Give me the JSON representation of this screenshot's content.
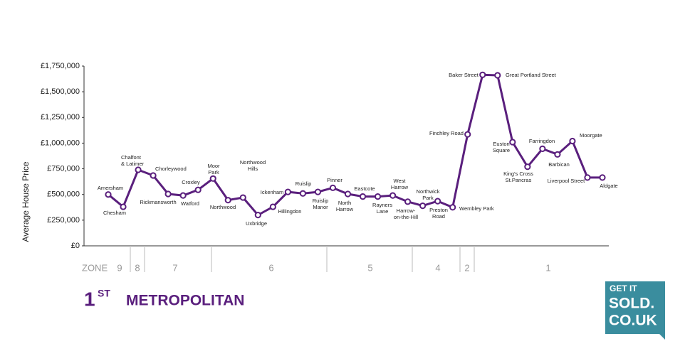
{
  "chart_data": {
    "type": "line",
    "y_label": "Average House Price",
    "ylim": [
      0,
      1750000
    ],
    "yticks": [
      {
        "value": 0,
        "label": "£0"
      },
      {
        "value": 250000,
        "label": "£250,000"
      },
      {
        "value": 500000,
        "label": "£500,000"
      },
      {
        "value": 750000,
        "label": "£750,000"
      },
      {
        "value": 1000000,
        "label": "£1,000,000"
      },
      {
        "value": 1250000,
        "label": "£1,250,000"
      },
      {
        "value": 1500000,
        "label": "£1,500,000"
      },
      {
        "value": 1750000,
        "label": "£1,750,000"
      }
    ],
    "color": "#5a1f7d",
    "categories": [
      "Amersham",
      "Chesham",
      "Chalfont & Latimer",
      "Chorleywood",
      "Rickmansworth",
      "Watford",
      "Croxley",
      "Moor Park",
      "Northwood",
      "Northwood Hills",
      "Uxbridge",
      "Hillingdon",
      "Ickenham",
      "Ruislip",
      "Ruislip Manor",
      "Pinner",
      "North Harrow",
      "Eastcote",
      "Rayners Lane",
      "West Harrow",
      "Harrow-on-the-Hill",
      "Northwick Park",
      "Preston Road",
      "Wembley Park",
      "Finchley Road",
      "Baker Street",
      "Great Portland Street",
      "Euston Square",
      "King's Cross St.Pancras",
      "Farringdon",
      "Barbican",
      "Moorgate",
      "Liverpool Street",
      "Aldgate"
    ],
    "values": [
      500000,
      380000,
      740000,
      685000,
      505000,
      490000,
      545000,
      655000,
      445000,
      470000,
      300000,
      380000,
      525000,
      510000,
      525000,
      565000,
      505000,
      480000,
      480000,
      490000,
      430000,
      390000,
      435000,
      375000,
      1085000,
      1665000,
      1660000,
      1010000,
      770000,
      945000,
      890000,
      1020000,
      665000,
      665000
    ],
    "zone_title": "ZONE",
    "zones": [
      "9",
      "8",
      "7",
      "6",
      "5",
      "4",
      "2",
      "1"
    ],
    "rank": "1",
    "rank_suffix": "ST",
    "line_name": "METROPOLITAN",
    "logo": [
      "GET IT",
      "SOLD.",
      "CO.UK"
    ]
  }
}
